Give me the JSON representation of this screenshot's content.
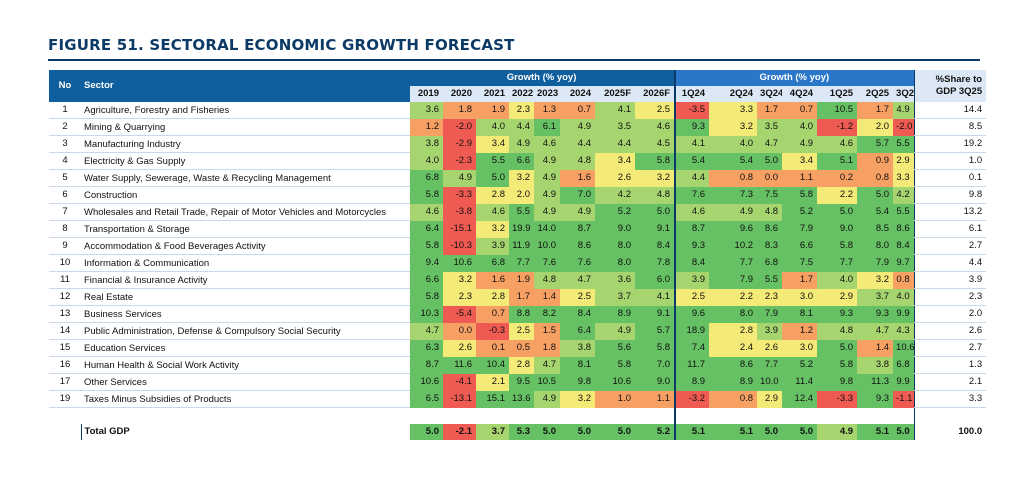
{
  "title": "FIGURE 51.  SECTORAL ECONOMIC GROWTH FORECAST",
  "header": {
    "no": "No",
    "sector": "Sector",
    "growth_annual": "Growth  (% yoy)",
    "growth_quarterly": "Growth  (% yoy)",
    "share_line1": "%Share to",
    "share_line2": "GDP 3Q25"
  },
  "annual_years": [
    "2019",
    "2020",
    "2021",
    "2022",
    "2023",
    "2024",
    "2025F",
    "2026F"
  ],
  "quarters": [
    "1Q24",
    "2Q24",
    "3Q24",
    "4Q24",
    "1Q25",
    "2Q25",
    "3Q25"
  ],
  "colors": {
    "red": "#ef5a52",
    "orange": "#f7a064",
    "yellow": "#f4ea77",
    "lightgreen": "#a6d46e",
    "green": "#66c064",
    "header_dark": "#0f5f9e",
    "header_mid": "#2a76c8"
  },
  "rows": [
    {
      "no": "1",
      "sector": "Agriculture, Forestry and Fisheries",
      "annual": [
        "3.6",
        "1.8",
        "1.9",
        "2.3",
        "1.3",
        "0.7",
        "4.1",
        "2.5"
      ],
      "quarterly": [
        "-3.5",
        "3.3",
        "1.7",
        "0.7",
        "10.5",
        "1.7",
        "4.9"
      ],
      "share": "14.4"
    },
    {
      "no": "2",
      "sector": "Mining & Quarrying",
      "annual": [
        "1.2",
        "-2.0",
        "4.0",
        "4.4",
        "6.1",
        "4.9",
        "3.5",
        "4.6"
      ],
      "quarterly": [
        "9.3",
        "3.2",
        "3.5",
        "4.0",
        "-1.2",
        "2.0",
        "-2.0"
      ],
      "share": "8.5"
    },
    {
      "no": "3",
      "sector": "Manufacturing Industry",
      "annual": [
        "3.8",
        "-2.9",
        "3.4",
        "4.9",
        "4.6",
        "4.4",
        "4.4",
        "4.5"
      ],
      "quarterly": [
        "4.1",
        "4.0",
        "4.7",
        "4.9",
        "4.6",
        "5.7",
        "5.5"
      ],
      "share": "19.2"
    },
    {
      "no": "4",
      "sector": "Electricity & Gas Supply",
      "annual": [
        "4.0",
        "-2.3",
        "5.5",
        "6.6",
        "4.9",
        "4.8",
        "3.4",
        "5.8"
      ],
      "quarterly": [
        "5.4",
        "5.4",
        "5.0",
        "3.4",
        "5.1",
        "0.9",
        "2.9"
      ],
      "share": "1.0"
    },
    {
      "no": "5",
      "sector": "Water Supply, Sewerage, Waste & Recycling Management",
      "annual": [
        "6.8",
        "4.9",
        "5.0",
        "3.2",
        "4.9",
        "1.6",
        "2.6",
        "3.2"
      ],
      "quarterly": [
        "4.4",
        "0.8",
        "0.0",
        "1.1",
        "0.2",
        "0.8",
        "3.3"
      ],
      "share": "0.1"
    },
    {
      "no": "6",
      "sector": "Construction",
      "annual": [
        "5.8",
        "-3.3",
        "2.8",
        "2.0",
        "4.9",
        "7.0",
        "4.2",
        "4.8"
      ],
      "quarterly": [
        "7.6",
        "7.3",
        "7.5",
        "5.8",
        "2.2",
        "5.0",
        "4.2"
      ],
      "share": "9.8"
    },
    {
      "no": "7",
      "sector": "Wholesales and Retail Trade, Repair of Motor Vehicles and Motorcycles",
      "annual": [
        "4.6",
        "-3.8",
        "4.6",
        "5.5",
        "4.9",
        "4.9",
        "5.2",
        "5.0"
      ],
      "quarterly": [
        "4.6",
        "4.9",
        "4.8",
        "5.2",
        "5.0",
        "5.4",
        "5.5"
      ],
      "share": "13.2",
      "tall": true
    },
    {
      "no": "8",
      "sector": "Transportation & Storage",
      "annual": [
        "6.4",
        "-15.1",
        "3.2",
        "19.9",
        "14.0",
        "8.7",
        "9.0",
        "9.1"
      ],
      "quarterly": [
        "8.7",
        "9.6",
        "8.6",
        "7.9",
        "9.0",
        "8.5",
        "8.6"
      ],
      "share": "6.1"
    },
    {
      "no": "9",
      "sector": "Accommodation & Food Beverages Activity",
      "annual": [
        "5.8",
        "-10.3",
        "3.9",
        "11.9",
        "10.0",
        "8.6",
        "8.0",
        "8.4"
      ],
      "quarterly": [
        "9.3",
        "10.2",
        "8.3",
        "6.6",
        "5.8",
        "8.0",
        "8.4"
      ],
      "share": "2.7"
    },
    {
      "no": "10",
      "sector": "Information & Communication",
      "annual": [
        "9.4",
        "10.6",
        "6.8",
        "7.7",
        "7.6",
        "7.6",
        "8.0",
        "7.8"
      ],
      "quarterly": [
        "8.4",
        "7.7",
        "6.8",
        "7.5",
        "7.7",
        "7.9",
        "9.7"
      ],
      "share": "4.4"
    },
    {
      "no": "11",
      "sector": "Financial & Insurance Activity",
      "annual": [
        "6.6",
        "3.2",
        "1.6",
        "1.9",
        "4.8",
        "4.7",
        "3.6",
        "6.0"
      ],
      "quarterly": [
        "3.9",
        "7.9",
        "5.5",
        "1.7",
        "4.0",
        "3.2",
        "0.8"
      ],
      "share": "3.9"
    },
    {
      "no": "12",
      "sector": "Real Estate",
      "annual": [
        "5.8",
        "2.3",
        "2.8",
        "1.7",
        "1.4",
        "2.5",
        "3.7",
        "4.1"
      ],
      "quarterly": [
        "2.5",
        "2.2",
        "2.3",
        "3.0",
        "2.9",
        "3.7",
        "4.0"
      ],
      "share": "2.3"
    },
    {
      "no": "13",
      "sector": "Business Services",
      "annual": [
        "10.3",
        "-5.4",
        "0.7",
        "8.8",
        "8.2",
        "8.4",
        "8.9",
        "9.1"
      ],
      "quarterly": [
        "9.6",
        "8.0",
        "7.9",
        "8.1",
        "9.3",
        "9.3",
        "9.9"
      ],
      "share": "2.0"
    },
    {
      "no": "14",
      "sector": "Public Administration, Defense & Compulsory Social Security",
      "annual": [
        "4.7",
        "0.0",
        "-0.3",
        "2.5",
        "1.5",
        "6.4",
        "4.9",
        "5.7"
      ],
      "quarterly": [
        "18.9",
        "2.8",
        "3.9",
        "1.2",
        "4.8",
        "4.7",
        "4.3"
      ],
      "share": "2.6",
      "tall": true
    },
    {
      "no": "15",
      "sector": "Education Services",
      "annual": [
        "6.3",
        "2.6",
        "0.1",
        "0.5",
        "1.8",
        "3.8",
        "5.6",
        "5.8"
      ],
      "quarterly": [
        "7.4",
        "2.4",
        "2.6",
        "3.0",
        "5.0",
        "1.4",
        "10.6"
      ],
      "share": "2.7"
    },
    {
      "no": "16",
      "sector": "Human Health & Social Work Activity",
      "annual": [
        "8.7",
        "11.6",
        "10.4",
        "2.8",
        "4.7",
        "8.1",
        "5.8",
        "7.0"
      ],
      "quarterly": [
        "11.7",
        "8.6",
        "7.7",
        "5.2",
        "5.8",
        "3.8",
        "6.8"
      ],
      "share": "1.3"
    },
    {
      "no": "17",
      "sector": "Other Services",
      "annual": [
        "10.6",
        "-4.1",
        "2.1",
        "9.5",
        "10.5",
        "9.8",
        "10.6",
        "9.0"
      ],
      "quarterly": [
        "8.9",
        "8.9",
        "10.0",
        "11.4",
        "9.8",
        "11.3",
        "9.9"
      ],
      "share": "2.1"
    },
    {
      "no": "19",
      "sector": "Taxes Minus Subsidies of Products",
      "annual": [
        "6.5",
        "-13.1",
        "15.1",
        "13.6",
        "4.9",
        "3.2",
        "1.0",
        "1.1"
      ],
      "quarterly": [
        "-3.2",
        "0.8",
        "2.9",
        "12.4",
        "-3.3",
        "9.3",
        "-1.1"
      ],
      "share": "3.3"
    }
  ],
  "total": {
    "label": "Total GDP",
    "annual": [
      "5.0",
      "-2.1",
      "3.7",
      "5.3",
      "5.0",
      "5.0",
      "5.0",
      "5.2"
    ],
    "quarterly": [
      "5.1",
      "5.1",
      "5.0",
      "5.0",
      "4.9",
      "5.1",
      "5.0"
    ],
    "share": "100.0"
  }
}
